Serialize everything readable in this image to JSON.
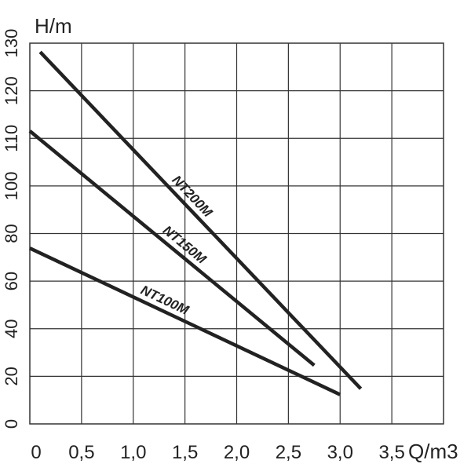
{
  "chart_data": {
    "type": "line",
    "xlabel": "Q/m3",
    "ylabel": "H/m",
    "xlim": [
      0,
      4.0
    ],
    "ylim": [
      0,
      130
    ],
    "x_ticks": [
      "0",
      "0,5",
      "1,0",
      "1,5",
      "2,0",
      "2,5",
      "3,0",
      "3,5"
    ],
    "x_tick_values": [
      0,
      0.5,
      1.0,
      1.5,
      2.0,
      2.5,
      3.0,
      3.5
    ],
    "y_ticks": [
      "0",
      "20",
      "40",
      "60",
      "80",
      "100",
      "110",
      "120",
      "130"
    ],
    "y_tick_values": [
      0,
      20,
      40,
      60,
      80,
      100,
      110,
      120,
      130
    ],
    "grid": true,
    "series": [
      {
        "name": "NT200M",
        "x": [
          0.1,
          3.2
        ],
        "y": [
          127,
          12
        ]
      },
      {
        "name": "NT150M",
        "x": [
          0.0,
          2.75
        ],
        "y": [
          100,
          20
        ]
      },
      {
        "name": "NT100M",
        "x": [
          0.0,
          3.0
        ],
        "y": [
          60,
          10
        ]
      }
    ],
    "line_color": "#222222",
    "grid_color": "#333333"
  }
}
